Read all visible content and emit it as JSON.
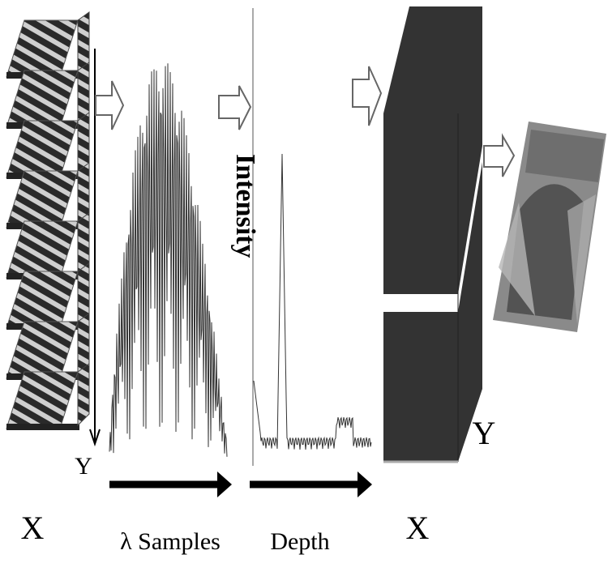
{
  "labels": {
    "stack_y": "Y",
    "stack_x": "X",
    "samples": "λ Samples",
    "intensity": "Intensity",
    "depth": "Depth",
    "volume_x": "X",
    "volume_y": "Y"
  }
}
